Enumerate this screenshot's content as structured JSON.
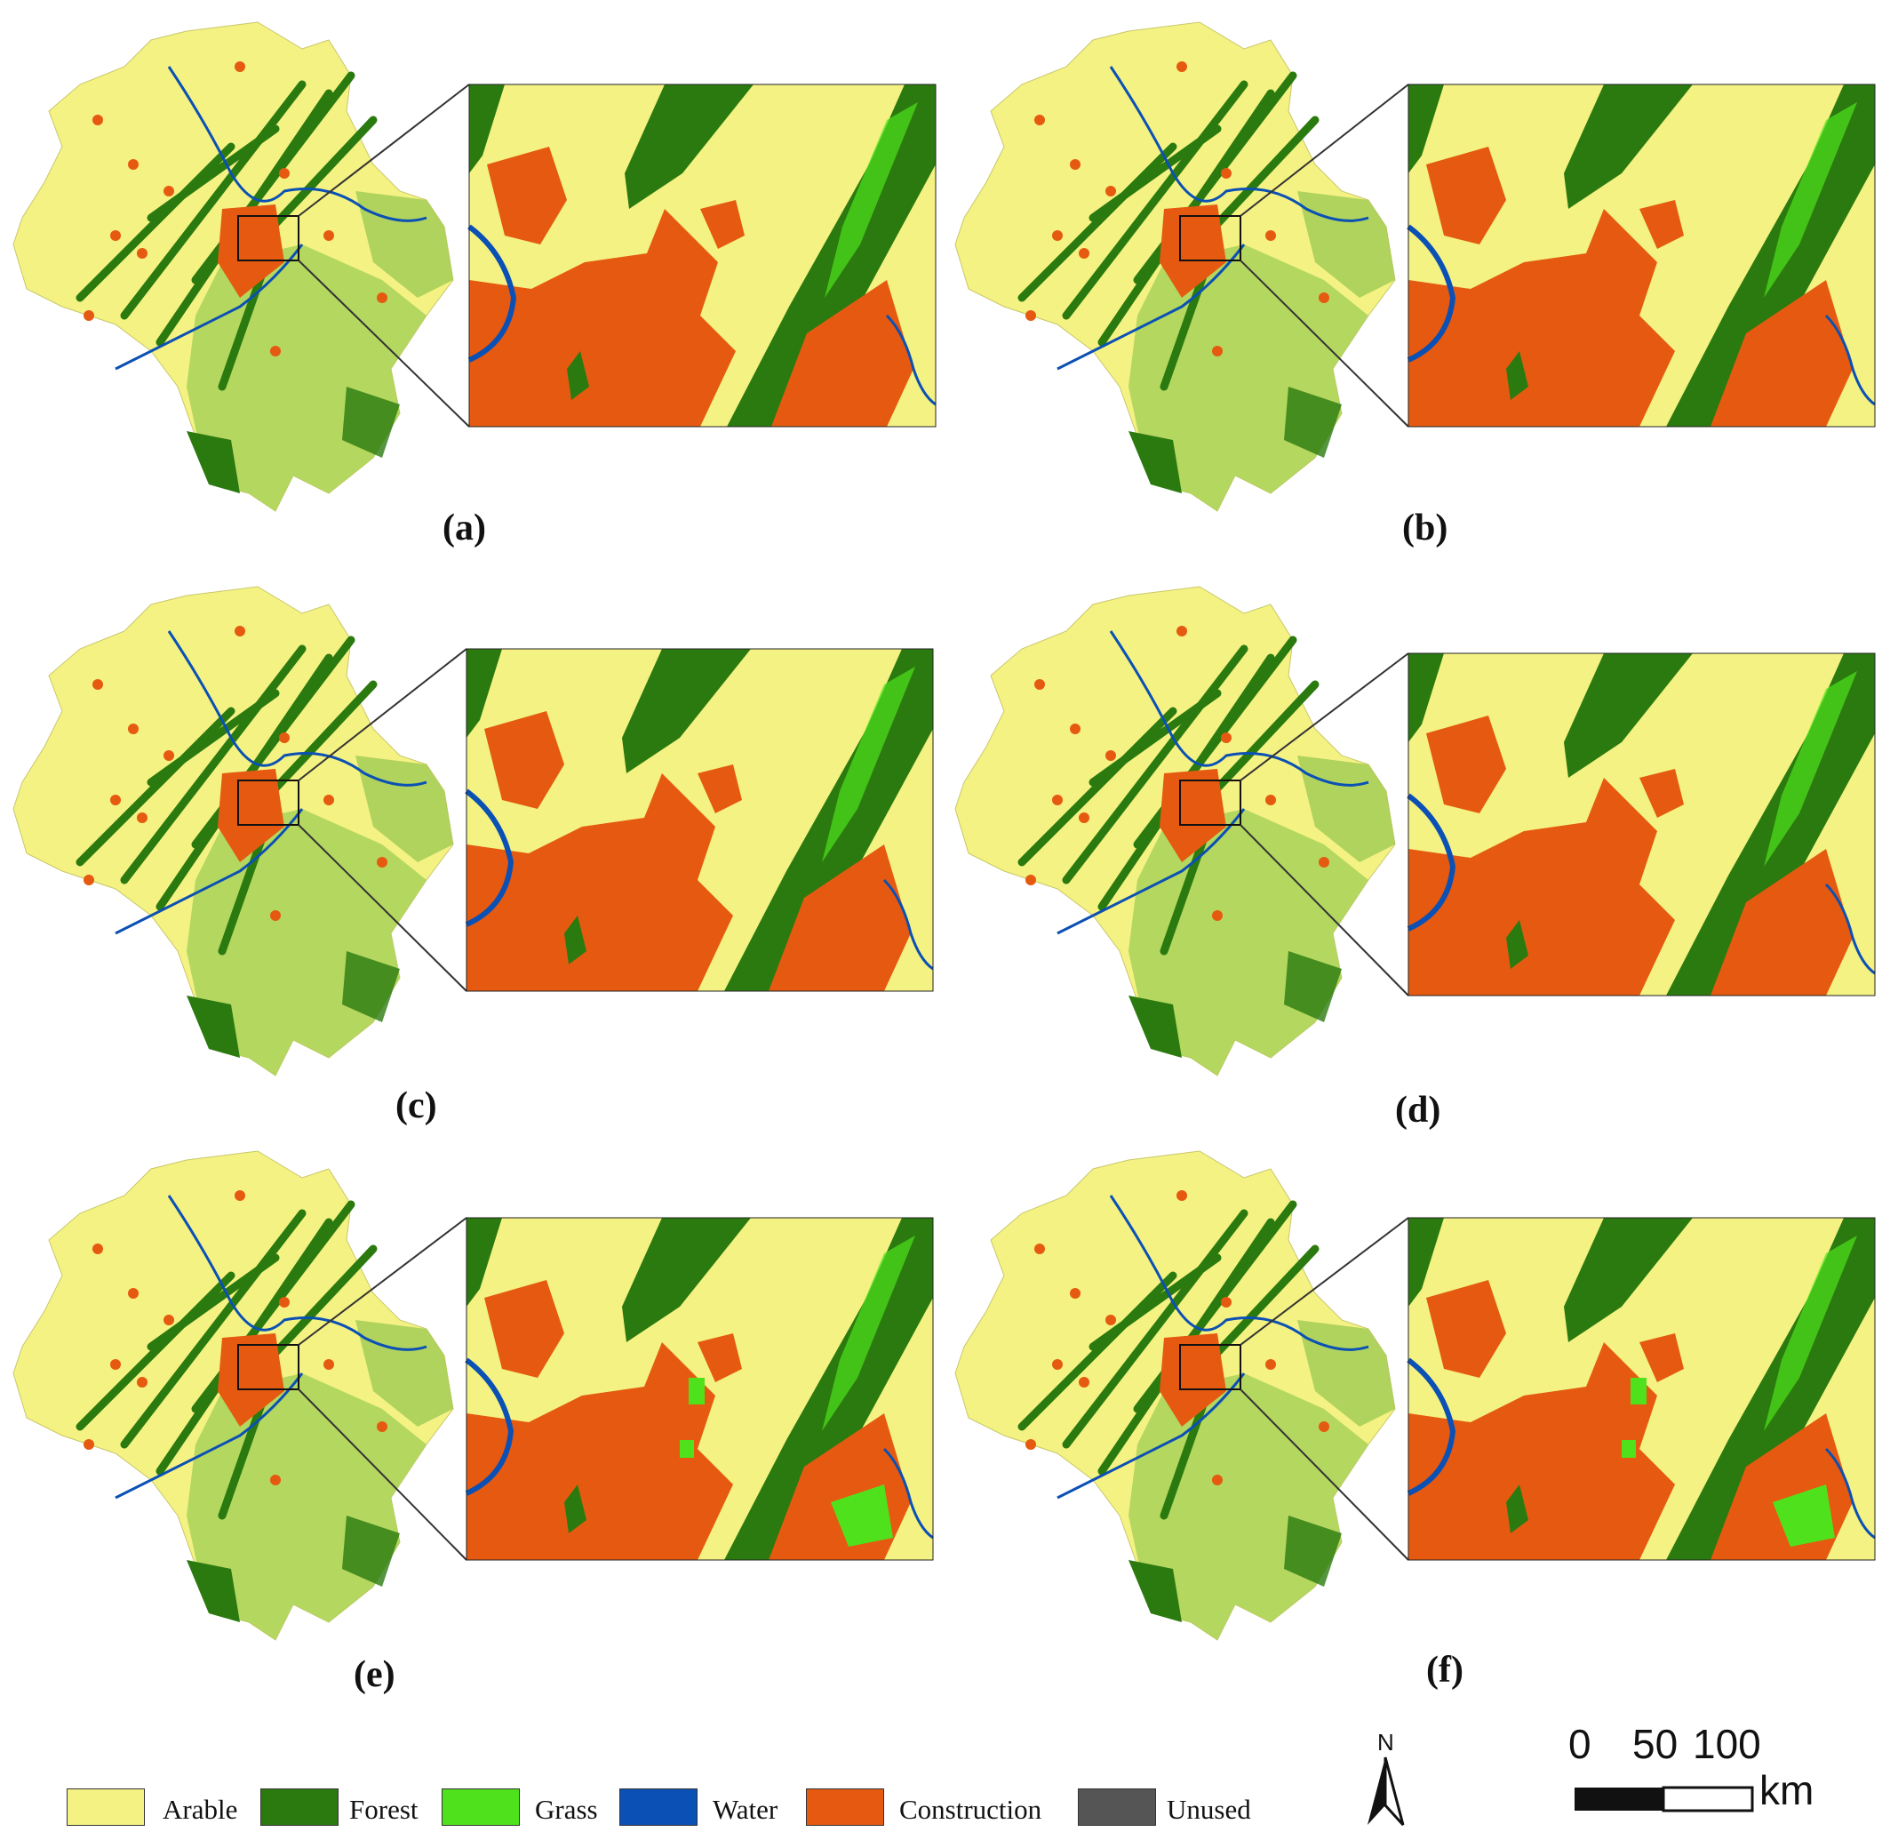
{
  "legend": {
    "title": "",
    "items": [
      {
        "label": "Arable",
        "color": "#f4f283"
      },
      {
        "label": "Forest",
        "color": "#2b7a0f"
      },
      {
        "label": "Grass",
        "color": "#4fe21c"
      },
      {
        "label": "Water",
        "color": "#0b50b4"
      },
      {
        "label": "Construction",
        "color": "#e55a10"
      },
      {
        "label": "Unused",
        "color": "#555555"
      }
    ]
  },
  "panels": [
    {
      "label": "(a)"
    },
    {
      "label": "(b)"
    },
    {
      "label": "(c)"
    },
    {
      "label": "(d)"
    },
    {
      "label": "(e)"
    },
    {
      "label": "(f)"
    }
  ],
  "north_arrow": {
    "letter": "N"
  },
  "scale_bar": {
    "ticks": [
      "0",
      "50",
      "100"
    ],
    "unit": "km"
  }
}
